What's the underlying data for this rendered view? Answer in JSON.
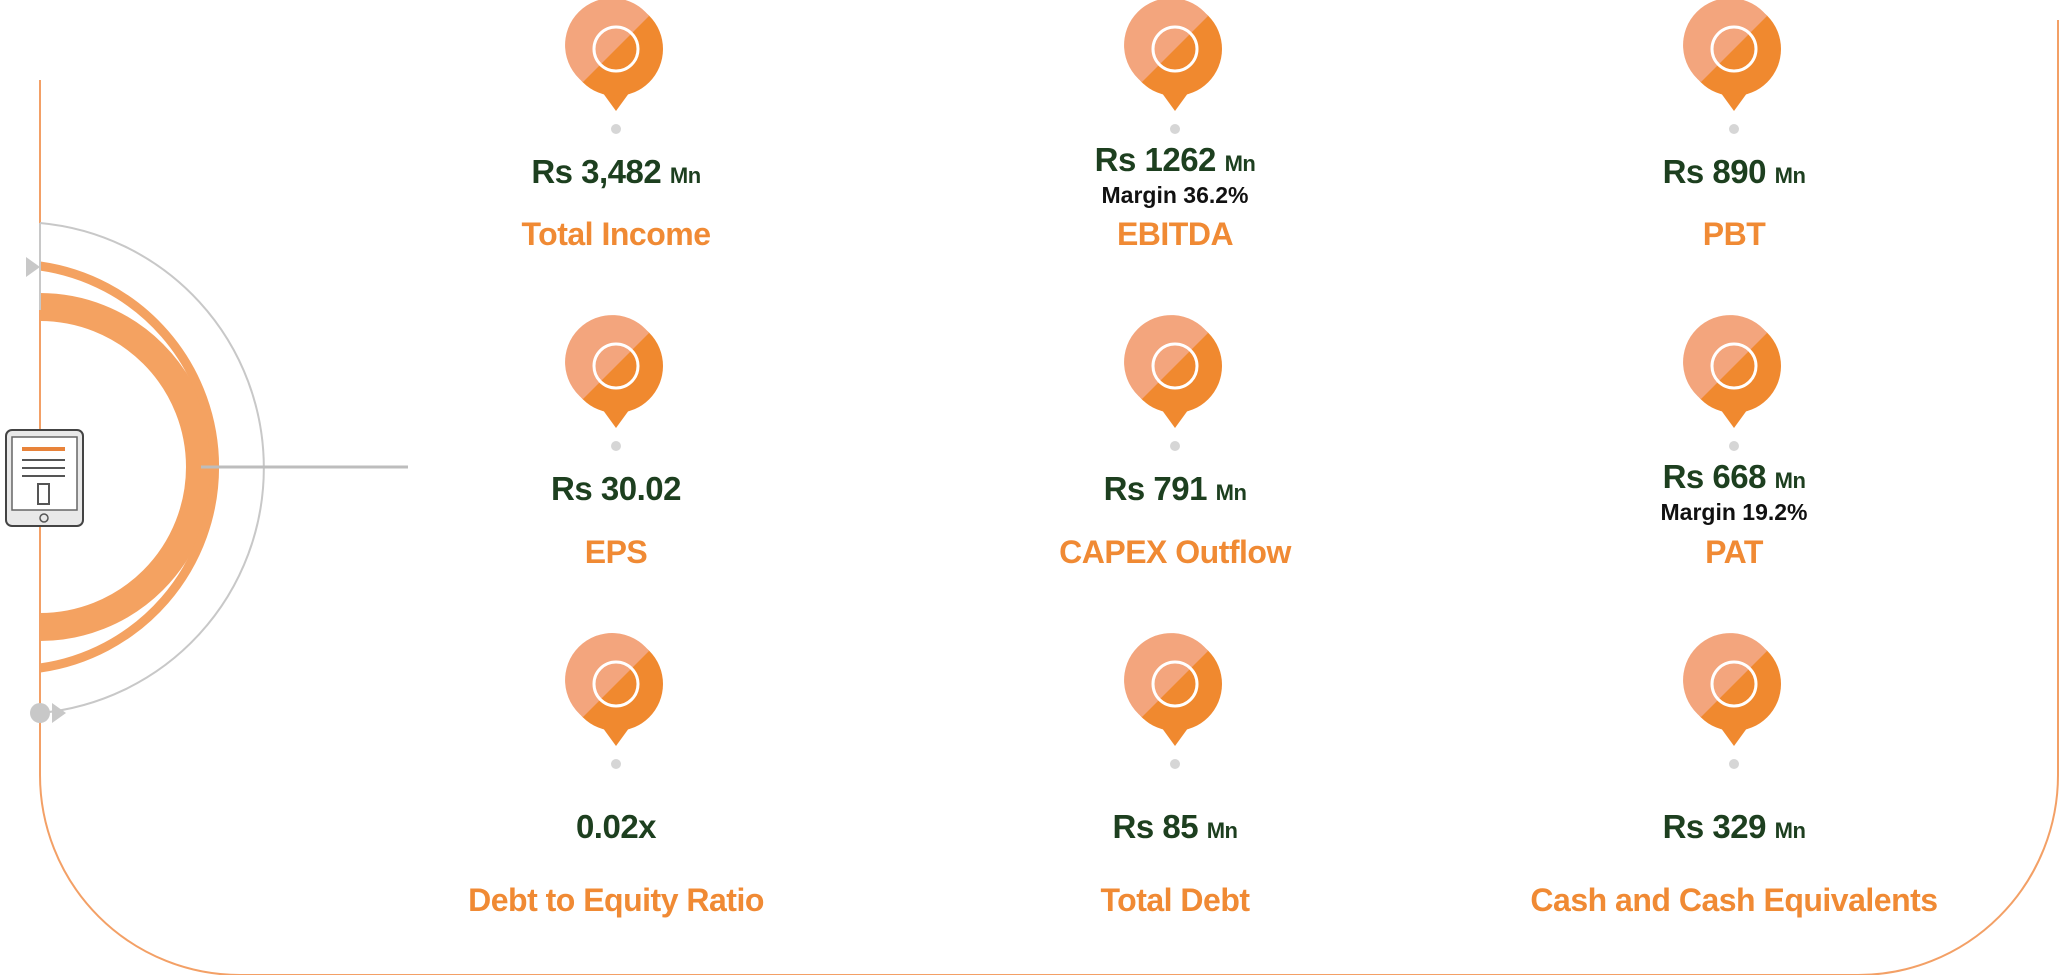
{
  "items": [
    {
      "value": "Rs 3,482",
      "unit": "Mn",
      "label": "Total Income"
    },
    {
      "value": "Rs 1262",
      "unit": "Mn",
      "margin": "Margin 36.2%",
      "label": "EBITDA"
    },
    {
      "value": "Rs 890",
      "unit": "Mn",
      "label": "PBT"
    },
    {
      "value": "Rs 30.02",
      "label": "EPS"
    },
    {
      "value": "Rs 791",
      "unit": "Mn",
      "label": "CAPEX Outflow"
    },
    {
      "value": "Rs 668",
      "unit": "Mn",
      "margin": "Margin 19.2%",
      "label": "PAT"
    },
    {
      "value": "0.02x",
      "label": "Debt to Equity Ratio"
    },
    {
      "value": "Rs 85",
      "unit": "Mn",
      "label": "Total Debt"
    },
    {
      "value": "Rs 329",
      "unit": "Mn",
      "label": "Cash and Cash Equivalents"
    }
  ]
}
